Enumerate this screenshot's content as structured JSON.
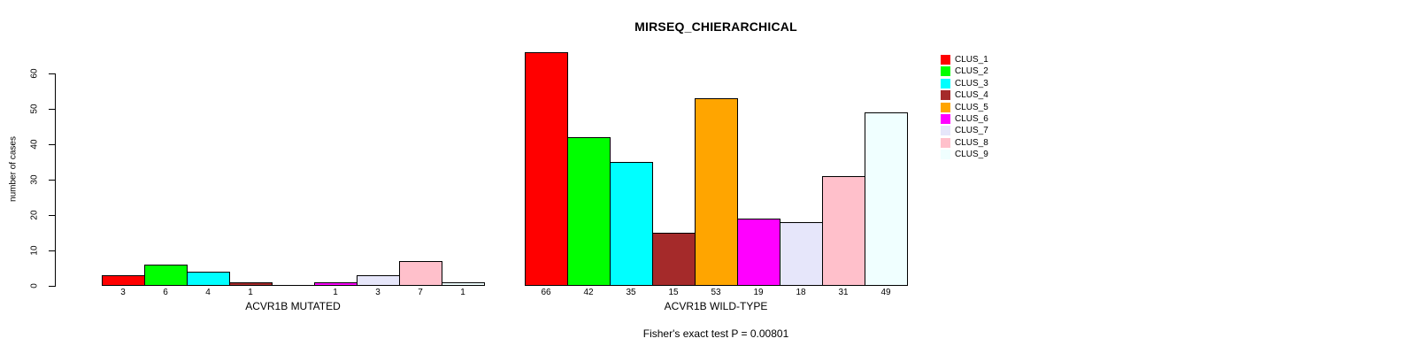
{
  "chart_data": {
    "type": "bar",
    "title": "MIRSEQ_CHIERARCHICAL",
    "ylabel": "number of cases",
    "ylim": [
      0,
      60
    ],
    "yticks": [
      0,
      10,
      20,
      30,
      40,
      50,
      60
    ],
    "grid": false,
    "categories": [
      "CLUS_1",
      "CLUS_2",
      "CLUS_3",
      "CLUS_4",
      "CLUS_5",
      "CLUS_6",
      "CLUS_7",
      "CLUS_8",
      "CLUS_9"
    ],
    "colors": [
      "#ff0000",
      "#00ff00",
      "#00ffff",
      "#a52a2a",
      "#ffa500",
      "#ff00ff",
      "#e6e6fa",
      "#ffc0cb",
      "#f0ffff"
    ],
    "series": [
      {
        "name": "ACVR1B MUTATED",
        "values": [
          3,
          6,
          4,
          1,
          0,
          1,
          3,
          7,
          1
        ]
      },
      {
        "name": "ACVR1B WILD-TYPE",
        "values": [
          66,
          42,
          35,
          15,
          53,
          19,
          18,
          31,
          49
        ]
      }
    ],
    "bar_value_labels_visible": true,
    "legend": {
      "position": "right"
    },
    "annotation": "Fisher's exact test P = 0.00801"
  }
}
